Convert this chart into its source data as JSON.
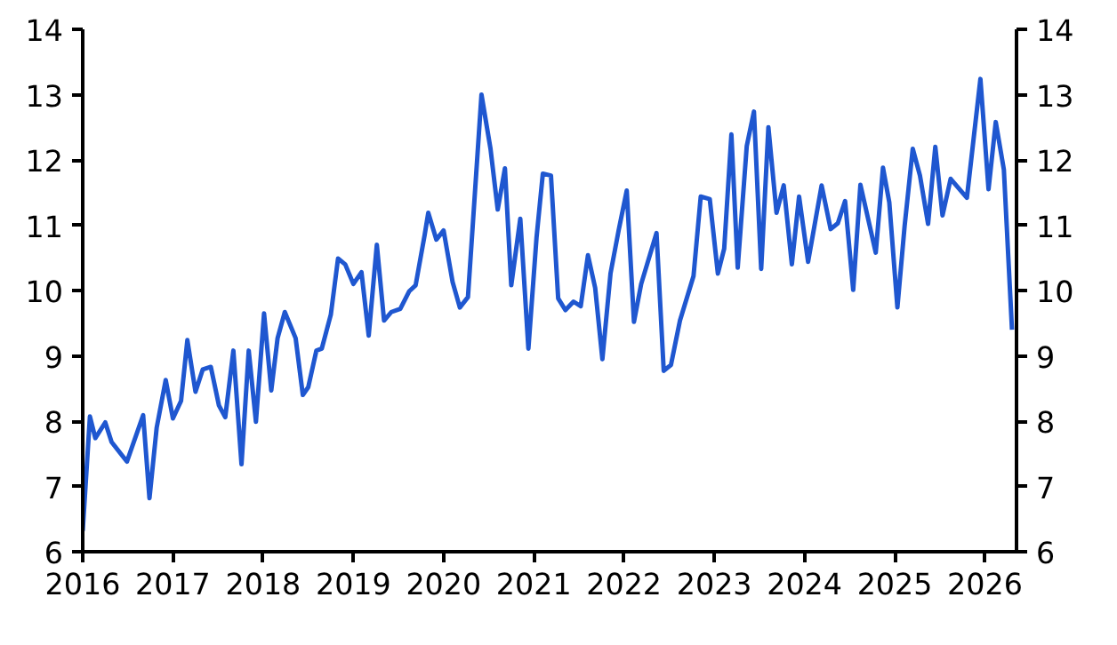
{
  "chart_data": {
    "type": "line",
    "x": [
      2016.0,
      2016.08,
      2016.14,
      2016.25,
      2016.32,
      2016.49,
      2016.67,
      2016.74,
      2016.82,
      2016.92,
      2017.0,
      2017.09,
      2017.16,
      2017.25,
      2017.33,
      2017.42,
      2017.51,
      2017.58,
      2017.67,
      2017.76,
      2017.84,
      2017.92,
      2018.01,
      2018.09,
      2018.16,
      2018.24,
      2018.36,
      2018.44,
      2018.5,
      2018.59,
      2018.65,
      2018.75,
      2018.83,
      2018.91,
      2019.0,
      2019.09,
      2019.17,
      2019.26,
      2019.34,
      2019.42,
      2019.52,
      2019.62,
      2019.69,
      2019.79,
      2019.83,
      2019.92,
      2020.0,
      2020.1,
      2020.18,
      2020.27,
      2020.42,
      2020.52,
      2020.6,
      2020.68,
      2020.75,
      2020.85,
      2020.94,
      2021.03,
      2021.1,
      2021.19,
      2021.27,
      2021.35,
      2021.44,
      2021.52,
      2021.6,
      2021.68,
      2021.76,
      2021.85,
      2021.94,
      2022.03,
      2022.11,
      2022.19,
      2022.36,
      2022.44,
      2022.52,
      2022.62,
      2022.77,
      2022.85,
      2022.95,
      2023.04,
      2023.11,
      2023.19,
      2023.26,
      2023.36,
      2023.44,
      2023.52,
      2023.6,
      2023.69,
      2023.77,
      2023.86,
      2023.94,
      2024.04,
      2024.19,
      2024.29,
      2024.37,
      2024.45,
      2024.54,
      2024.62,
      2024.79,
      2024.87,
      2024.94,
      2025.03,
      2025.11,
      2025.2,
      2025.28,
      2025.37,
      2025.45,
      2025.53,
      2025.62,
      2025.8,
      2025.95,
      2026.04,
      2026.12,
      2026.21,
      2026.3
    ],
    "series": [
      {
        "color": "#1f57d0",
        "values": [
          6.32,
          8.07,
          7.74,
          7.98,
          7.68,
          7.38,
          8.09,
          6.82,
          7.9,
          8.63,
          8.04,
          8.31,
          9.24,
          8.45,
          8.79,
          8.83,
          8.24,
          8.06,
          9.08,
          7.34,
          9.08,
          7.99,
          9.65,
          8.47,
          9.27,
          9.67,
          9.27,
          8.4,
          8.52,
          9.08,
          9.11,
          9.63,
          10.49,
          10.4,
          10.1,
          10.28,
          9.31,
          10.7,
          9.54,
          9.67,
          9.72,
          9.99,
          10.08,
          10.85,
          11.19,
          10.78,
          10.92,
          10.13,
          9.74,
          9.9,
          13.0,
          12.17,
          11.24,
          11.87,
          10.08,
          11.1,
          9.11,
          10.81,
          11.79,
          11.76,
          9.88,
          9.7,
          9.83,
          9.76,
          10.54,
          10.04,
          8.95,
          10.26,
          10.92,
          11.53,
          9.52,
          10.1,
          10.88,
          8.77,
          8.86,
          9.54,
          10.22,
          11.44,
          11.4,
          10.26,
          10.64,
          12.39,
          10.35,
          12.21,
          12.74,
          10.33,
          12.5,
          11.19,
          11.61,
          10.4,
          11.44,
          10.44,
          11.61,
          10.94,
          11.03,
          11.37,
          10.01,
          11.62,
          10.58,
          11.88,
          11.35,
          9.74,
          10.99,
          12.17,
          11.76,
          11.02,
          12.2,
          11.15,
          11.71,
          11.42,
          13.24,
          11.55,
          12.58,
          11.85,
          9.4
        ]
      }
    ],
    "xlim": [
      2016,
      2026.35
    ],
    "xticks": [
      2016,
      2017,
      2018,
      2019,
      2020,
      2021,
      2022,
      2023,
      2024,
      2025,
      2026
    ],
    "ylim": [
      6,
      14
    ],
    "yticks": [
      6,
      7,
      8,
      9,
      10,
      11,
      12,
      13,
      14
    ],
    "y2lim": [
      6,
      14
    ],
    "y2ticks": [
      6,
      7,
      8,
      9,
      10,
      11,
      12,
      13,
      14
    ],
    "grid": false,
    "marker": "none",
    "line_style": "solid"
  }
}
